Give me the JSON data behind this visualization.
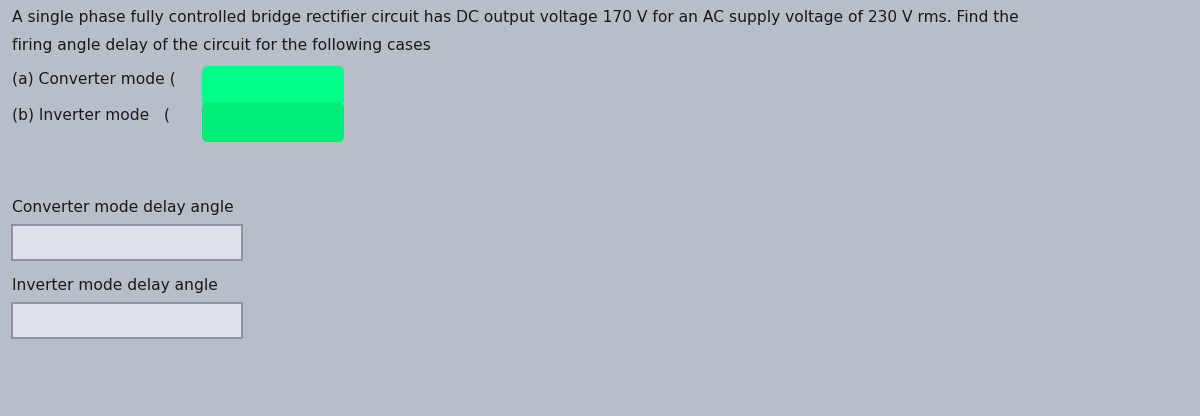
{
  "title_line1": "A single phase fully controlled bridge rectifier circuit has DC output voltage 170 V for an AC supply voltage of 230 V rms. Find the",
  "title_line2": "firing angle delay of the circuit for the following cases",
  "case_a_label": "(a) Converter mode (",
  "case_b_label": "(b) Inverter mode   (",
  "blob_a_color": "#00ff88",
  "blob_b_color": "#00ee77",
  "label_converter": "Converter mode delay angle",
  "label_inverter": "Inverter mode delay angle",
  "bg_color": "#b8bec8",
  "stripe_color": "#c0c6d0",
  "text_color": "#1a1a1a",
  "box_fill": "#dde2ea",
  "box_edge": "#888898",
  "title_fontsize": 11.2,
  "label_fontsize": 11.2,
  "case_fontsize": 11.2
}
